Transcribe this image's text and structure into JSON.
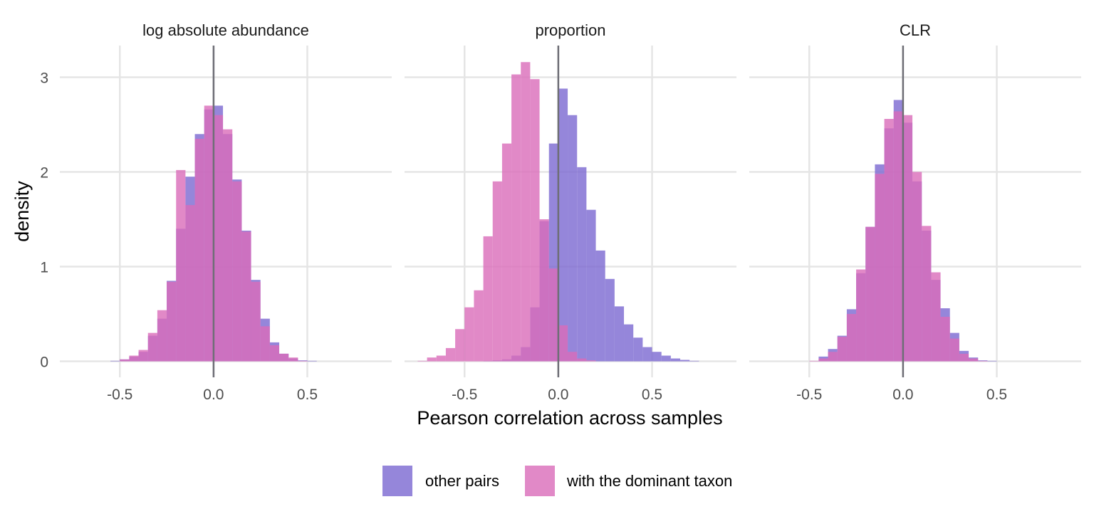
{
  "colors": {
    "other": "#7b68d1",
    "dominant": "#d96bb9",
    "zero_line": "#6e6e76"
  },
  "legend": {
    "other_label": "other pairs",
    "dominant_label": "with the dominant taxon"
  },
  "chart_data": {
    "type": "bar",
    "subtype": "faceted overlapping histogram",
    "xlabel": "Pearson correlation across samples",
    "ylabel": "density",
    "xlim": [
      -0.82,
      0.95
    ],
    "ylim": [
      0,
      3.3
    ],
    "x_ticks": [
      -0.5,
      0.0,
      0.5
    ],
    "x_tick_labels": [
      "-0.5",
      "0.0",
      "0.5"
    ],
    "y_ticks": [
      0,
      1,
      2,
      3
    ],
    "y_tick_labels": [
      "0",
      "1",
      "2",
      "3"
    ],
    "bin_width": 0.05,
    "bin_starts": [
      -0.8,
      -0.75,
      -0.7,
      -0.65,
      -0.6,
      -0.55,
      -0.5,
      -0.45,
      -0.4,
      -0.35,
      -0.3,
      -0.25,
      -0.2,
      -0.15,
      -0.1,
      -0.05,
      0.0,
      0.05,
      0.1,
      0.15,
      0.2,
      0.25,
      0.3,
      0.35,
      0.4,
      0.45,
      0.5,
      0.55,
      0.6,
      0.65,
      0.7,
      0.75,
      0.8,
      0.85,
      0.9
    ],
    "reference_line_x": 0,
    "grid": true,
    "legend_position": "bottom",
    "panels": [
      {
        "title": "log absolute abundance",
        "series": [
          {
            "name": "other pairs",
            "values": [
              0,
              0,
              0,
              0,
              0,
              0.005,
              0.02,
              0.05,
              0.1,
              0.27,
              0.45,
              0.85,
              1.4,
              1.95,
              2.4,
              2.66,
              2.7,
              2.4,
              1.92,
              1.38,
              0.86,
              0.45,
              0.2,
              0.08,
              0.03,
              0.01,
              0.005,
              0,
              0,
              0,
              0,
              0,
              0,
              0,
              0
            ]
          },
          {
            "name": "with the dominant taxon",
            "values": [
              0,
              0,
              0,
              0,
              0,
              0,
              0.02,
              0.06,
              0.12,
              0.3,
              0.54,
              0.84,
              2.02,
              1.65,
              2.35,
              2.7,
              2.6,
              2.45,
              1.9,
              1.37,
              0.84,
              0.37,
              0.17,
              0.08,
              0.04,
              0.005,
              0,
              0,
              0,
              0,
              0,
              0,
              0,
              0,
              0
            ]
          }
        ]
      },
      {
        "title": "proportion",
        "series": [
          {
            "name": "other pairs",
            "values": [
              0,
              0,
              0,
              0,
              0,
              0,
              0,
              0,
              0.005,
              0.01,
              0.02,
              0.06,
              0.15,
              0.57,
              1.48,
              2.3,
              2.88,
              2.6,
              2.05,
              1.6,
              1.17,
              0.87,
              0.58,
              0.39,
              0.25,
              0.15,
              0.1,
              0.06,
              0.03,
              0.015,
              0.005,
              0,
              0,
              0,
              0
            ]
          },
          {
            "name": "with the dominant taxon",
            "values": [
              0,
              0.005,
              0.04,
              0.06,
              0.14,
              0.34,
              0.57,
              0.75,
              1.32,
              1.9,
              2.3,
              3.03,
              3.16,
              2.98,
              1.5,
              0.98,
              0.38,
              0.1,
              0.03,
              0.01,
              0,
              0,
              0,
              0,
              0,
              0,
              0,
              0,
              0,
              0,
              0,
              0,
              0,
              0,
              0
            ]
          }
        ]
      },
      {
        "title": "CLR",
        "series": [
          {
            "name": "other pairs",
            "values": [
              0,
              0,
              0,
              0,
              0,
              0,
              0,
              0.05,
              0.13,
              0.27,
              0.55,
              0.93,
              1.42,
              2.08,
              2.46,
              2.76,
              2.52,
              1.9,
              1.38,
              0.86,
              0.56,
              0.3,
              0.11,
              0.04,
              0.01,
              0.005,
              0,
              0,
              0,
              0,
              0,
              0,
              0,
              0,
              0
            ]
          },
          {
            "name": "with the dominant taxon",
            "values": [
              0,
              0,
              0,
              0,
              0,
              0,
              0.005,
              0.03,
              0.1,
              0.26,
              0.5,
              0.97,
              1.42,
              1.98,
              2.56,
              2.64,
              2.6,
              2.0,
              1.43,
              0.94,
              0.47,
              0.24,
              0.08,
              0.03,
              0.005,
              0,
              0,
              0,
              0,
              0,
              0,
              0,
              0,
              0,
              0
            ]
          }
        ]
      }
    ]
  }
}
